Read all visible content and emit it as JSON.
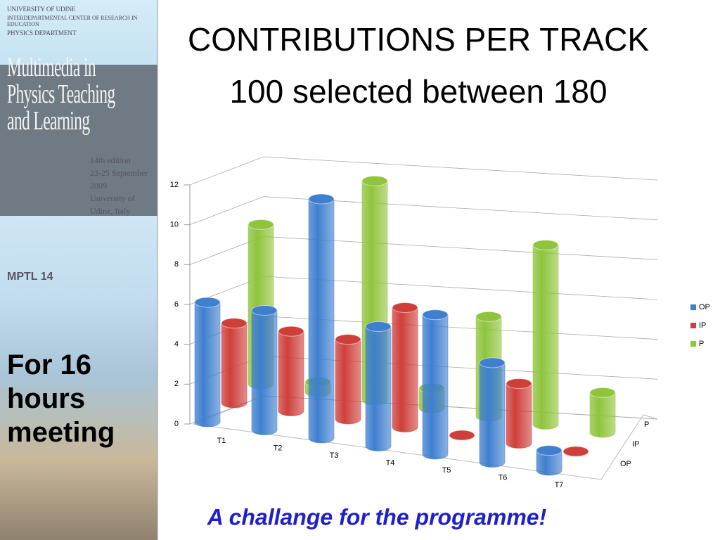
{
  "sidebar": {
    "institution": [
      "UNIVERSITY OF UDINE",
      "INTERDEPARTMENTAL CENTER OF RESEARCH IN EDUCATION",
      "PHYSICS DEPARTMENT"
    ],
    "conference": [
      "Multimedia in",
      "Physics Teaching",
      "and Learning"
    ],
    "edition": [
      "14th edition",
      "23-25 September 2009",
      "University of Udine, Italy"
    ],
    "logo": [
      "MPTL",
      "14"
    ],
    "note": [
      "For 16",
      "hours",
      "meeting"
    ]
  },
  "footer": "A challange for the programme!",
  "chart_data": {
    "type": "bar",
    "title": [
      "CONTRIBUTIONS PER TRACK",
      "100 selected between 180"
    ],
    "categories": [
      "T1",
      "T2",
      "T3",
      "T4",
      "T5",
      "T6",
      "T7"
    ],
    "series": [
      {
        "name": "OP",
        "color": "#3f7fcf",
        "values": [
          6,
          6,
          12,
          6,
          7,
          5,
          1
        ]
      },
      {
        "name": "IP",
        "color": "#cf3f3a",
        "values": [
          4,
          4,
          4,
          6,
          0,
          3,
          0
        ]
      },
      {
        "name": "P",
        "color": "#8fc43c",
        "values": [
          8,
          0.5,
          11,
          1,
          5,
          9,
          2
        ]
      }
    ],
    "ylim": [
      0,
      12
    ],
    "yticks": [
      0,
      2,
      4,
      6,
      8,
      10,
      12
    ],
    "grid": true,
    "legend": "right"
  }
}
